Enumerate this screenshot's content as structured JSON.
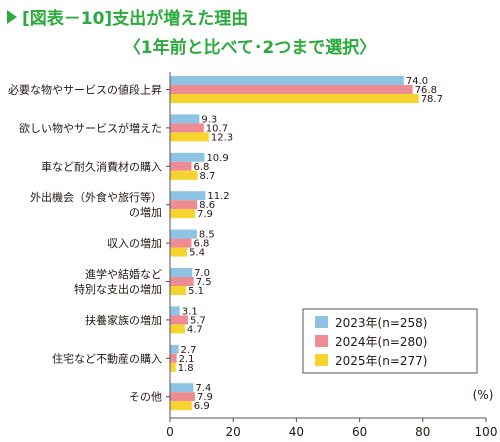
{
  "title": "[図表－10]支出が増えた理由",
  "subtitle": "〈1年前と比べて･2つまで選択〉",
  "colors": {
    "title": "#2bab3c",
    "s2023": "#8dc3e3",
    "s2024": "#ee8c93",
    "s2025": "#f7d32d"
  },
  "chart_data": {
    "type": "bar",
    "orientation": "horizontal",
    "unit": "(%)",
    "categories": [
      [
        "必要な物やサービスの値段上昇"
      ],
      [
        "欲しい物やサービスが増えた"
      ],
      [
        "車など耐久消費材の購入"
      ],
      [
        "外出機会（外食や旅行等）",
        "の増加"
      ],
      [
        "収入の増加"
      ],
      [
        "進学や結婚など",
        "特別な支出の増加"
      ],
      [
        "扶養家族の増加"
      ],
      [
        "住宅など不動産の購入"
      ],
      [
        "その他"
      ]
    ],
    "series": [
      {
        "name": "2023年(n=258)",
        "color": "#8dc3e3",
        "values": [
          74.0,
          9.3,
          10.9,
          11.2,
          8.5,
          7.0,
          3.1,
          2.7,
          7.4
        ],
        "labels": [
          "74.0",
          "9.3",
          "10.9",
          "11.2",
          "8.5",
          "7.0",
          "3.1",
          "2.7",
          "7.4"
        ]
      },
      {
        "name": "2024年(n=280)",
        "color": "#ee8c93",
        "values": [
          76.8,
          10.7,
          6.8,
          8.6,
          6.8,
          7.5,
          5.7,
          2.1,
          7.9
        ],
        "labels": [
          "76.8",
          "10.7",
          "6.8",
          "8.6",
          "6.8",
          "7.5",
          "5.7",
          "2.1",
          "7.9"
        ]
      },
      {
        "name": "2025年(n=277)",
        "color": "#f7d32d",
        "values": [
          78.7,
          12.3,
          8.7,
          7.9,
          5.4,
          5.1,
          4.7,
          1.8,
          6.9
        ],
        "labels": [
          "78.7",
          "12.3",
          "8.7",
          "7.9",
          "5.4",
          "5.1",
          "4.7",
          "1.8",
          "6.9"
        ]
      }
    ],
    "xlim": [
      0,
      100
    ],
    "xticks": [
      "0",
      "20",
      "40",
      "60",
      "80",
      "100"
    ],
    "grid": false,
    "legend_position": "bottom-right"
  }
}
